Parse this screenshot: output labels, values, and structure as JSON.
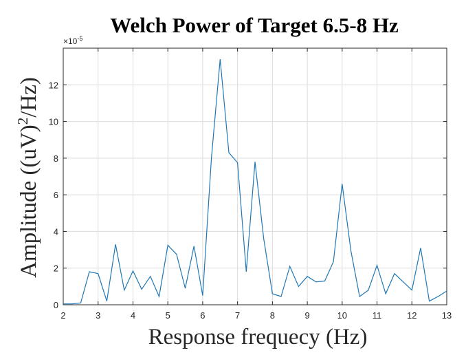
{
  "chart_data": {
    "type": "line",
    "title": "Welch Power of Target 6.5-8 Hz",
    "xlabel": "Response frequecy (Hz)",
    "ylabel_main": "Amplitude ((uV)",
    "ylabel_sup": "2",
    "ylabel_tail": "/Hz)",
    "y_exponent_base": "×10",
    "y_exponent": "-5",
    "xlim": [
      2,
      13
    ],
    "ylim": [
      0,
      14
    ],
    "x_ticks": [
      2,
      3,
      4,
      5,
      6,
      7,
      8,
      9,
      10,
      11,
      12,
      13
    ],
    "y_ticks": [
      0,
      2,
      4,
      6,
      8,
      10,
      12
    ],
    "grid": true,
    "series": [
      {
        "color": "#1f77b4",
        "x": [
          2.0,
          2.25,
          2.5,
          2.75,
          3.0,
          3.25,
          3.5,
          3.75,
          4.0,
          4.25,
          4.5,
          4.75,
          5.0,
          5.25,
          5.5,
          5.75,
          6.0,
          6.25,
          6.5,
          6.75,
          7.0,
          7.25,
          7.5,
          7.75,
          8.0,
          8.25,
          8.5,
          8.75,
          9.0,
          9.25,
          9.5,
          9.75,
          10.0,
          10.25,
          10.5,
          10.75,
          11.0,
          11.25,
          11.5,
          11.75,
          12.0,
          12.25,
          12.5,
          12.75,
          13.0
        ],
        "y": [
          0.05,
          0.05,
          0.1,
          1.8,
          1.7,
          0.2,
          3.3,
          0.8,
          1.85,
          0.85,
          1.55,
          0.45,
          3.25,
          2.75,
          0.9,
          3.2,
          0.5,
          8.0,
          13.4,
          8.3,
          7.75,
          1.8,
          7.8,
          3.6,
          0.6,
          0.45,
          2.1,
          1.0,
          1.55,
          1.25,
          1.3,
          2.35,
          6.6,
          2.95,
          0.45,
          0.8,
          2.15,
          0.6,
          1.7,
          1.25,
          0.8,
          3.1,
          0.2,
          0.45,
          0.75
        ]
      }
    ]
  }
}
